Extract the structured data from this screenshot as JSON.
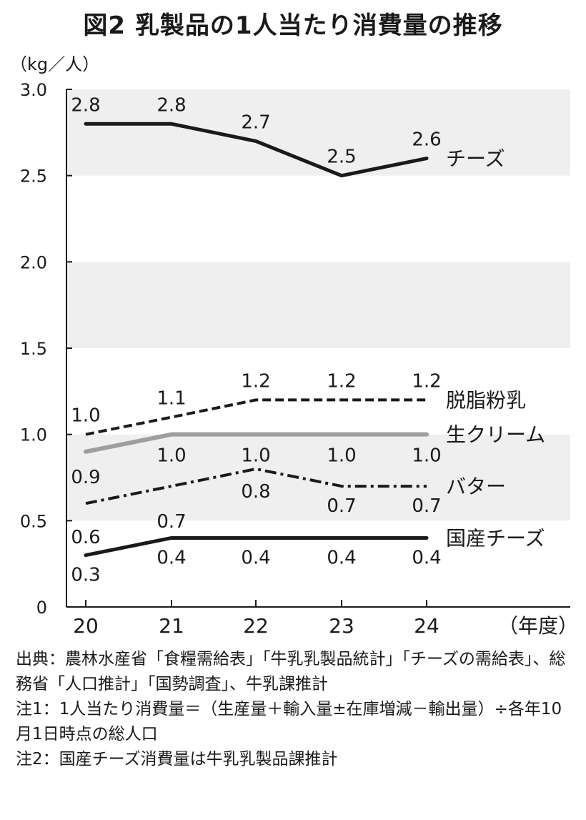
{
  "chart_data": {
    "type": "line",
    "title": "図2  乳製品の1人当たり消費量の推移",
    "ylabel": "（kg／人）",
    "xlabel": "（年度）",
    "x": [
      "20",
      "21",
      "22",
      "23",
      "24"
    ],
    "ylim": [
      0,
      3.0
    ],
    "yticks": [
      "0",
      "0.5",
      "1.0",
      "1.5",
      "2.0",
      "2.5",
      "3.0"
    ],
    "ytick_values": [
      0,
      0.5,
      1.0,
      1.5,
      2.0,
      2.5,
      3.0
    ],
    "grid": "alternating horizontal bands",
    "series": [
      {
        "name": "チーズ",
        "values": [
          2.8,
          2.8,
          2.7,
          2.5,
          2.6
        ],
        "labels": [
          "2.8",
          "2.8",
          "2.7",
          "2.5",
          "2.6"
        ],
        "style": "solid",
        "color": "#1a1a1a"
      },
      {
        "name": "脱脂粉乳",
        "values": [
          1.0,
          1.1,
          1.2,
          1.2,
          1.2
        ],
        "labels": [
          "1.0",
          "1.1",
          "1.2",
          "1.2",
          "1.2"
        ],
        "style": "dashed",
        "color": "#1a1a1a"
      },
      {
        "name": "生クリーム",
        "values": [
          0.9,
          1.0,
          1.0,
          1.0,
          1.0
        ],
        "labels": [
          "0.9",
          "1.0",
          "1.0",
          "1.0",
          "1.0"
        ],
        "style": "solid",
        "color": "#9e9e9e"
      },
      {
        "name": "バター",
        "values": [
          0.6,
          0.7,
          0.8,
          0.7,
          0.7
        ],
        "labels": [
          "0.6",
          "0.7",
          "0.8",
          "0.7",
          "0.7"
        ],
        "style": "dashdot",
        "color": "#1a1a1a"
      },
      {
        "name": "国産チーズ",
        "values": [
          0.3,
          0.4,
          0.4,
          0.4,
          0.4
        ],
        "labels": [
          "0.3",
          "0.4",
          "0.4",
          "0.4",
          "0.4"
        ],
        "style": "solid",
        "color": "#1a1a1a"
      }
    ]
  },
  "notes": {
    "source": "出典：農林水産省「食糧需給表」「牛乳乳製品統計」「チーズの需給表」、総務省「人口推計」「国勢調査」、牛乳課推計",
    "note1": "注1：1人当たり消費量＝（生産量＋輸入量±在庫増減－輸出量）÷各年10月1日時点の総人口",
    "note2": "注2：国産チーズ消費量は牛乳乳製品課推計"
  }
}
